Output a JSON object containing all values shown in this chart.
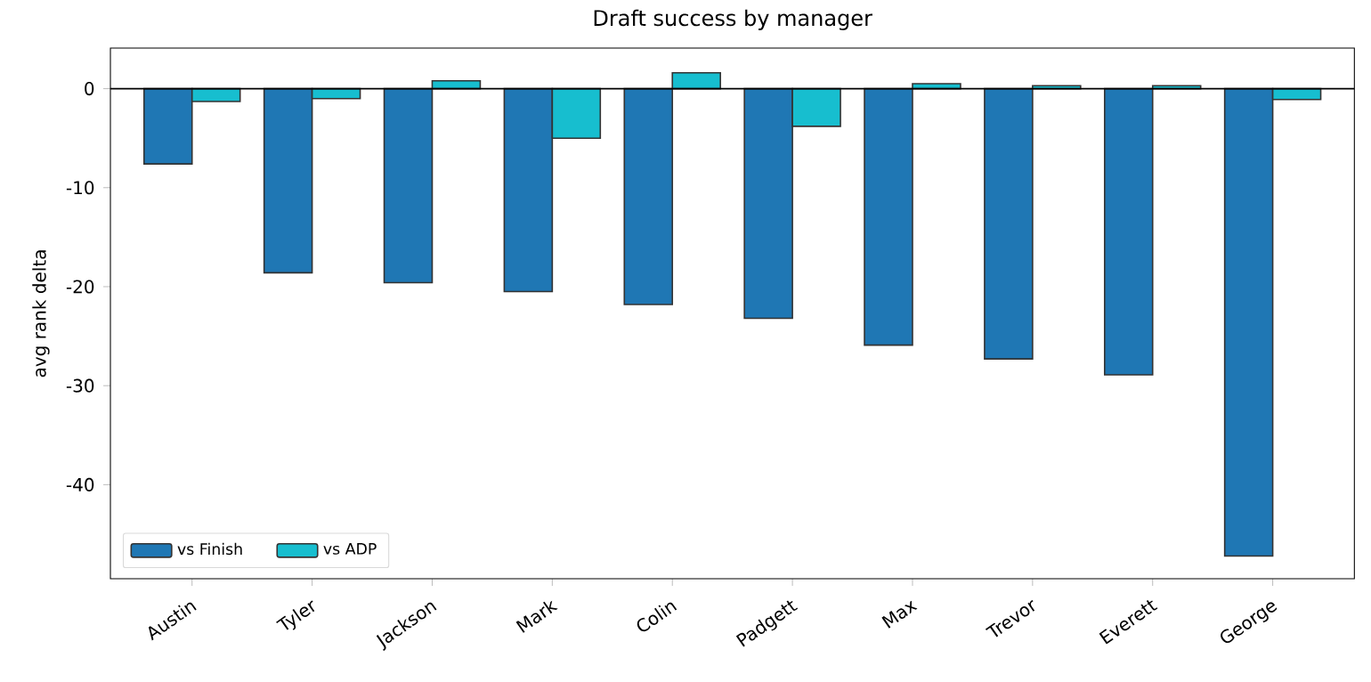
{
  "chart_data": {
    "type": "bar",
    "title": "Draft success by manager",
    "ylabel": "avg rank delta",
    "categories": [
      "Austin",
      "Tyler",
      "Jackson",
      "Mark",
      "Colin",
      "Padgett",
      "Max",
      "Trevor",
      "Everett",
      "George"
    ],
    "series": [
      {
        "name": "vs Finish",
        "color": "#1f77b4",
        "values": [
          -7.6,
          -18.6,
          -19.6,
          -20.5,
          -21.8,
          -23.2,
          -25.9,
          -27.3,
          -28.9,
          -47.2
        ]
      },
      {
        "name": "vs ADP",
        "color": "#17becf",
        "values": [
          -1.3,
          -1.0,
          0.8,
          -5.0,
          1.6,
          -3.8,
          0.5,
          0.3,
          0.3,
          -1.1
        ]
      }
    ],
    "ylim": [
      -49.5,
      4.1
    ],
    "yticks": [
      -40,
      -30,
      -20,
      -10,
      0
    ],
    "legend": "bottom left",
    "ref_lines": [
      {
        "axis": "y",
        "value": 0
      }
    ]
  }
}
